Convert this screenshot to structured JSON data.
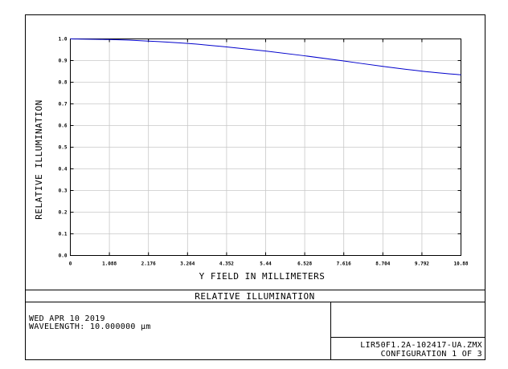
{
  "plot_title": "RELATIVE ILLUMINATION",
  "info": {
    "date": "WED APR 10 2019",
    "wavelength": "WAVELENGTH: 10.000000 µm",
    "file": "LIR50F1.2A-102417-UA.ZMX",
    "configuration": "CONFIGURATION 1 OF 3"
  },
  "colors": {
    "curve": "#0000cc",
    "grid": "#c8c8c8",
    "frame": "#000000"
  },
  "chart_data": {
    "type": "line",
    "title": "",
    "xlabel": "Y FIELD IN MILLIMETERS",
    "ylabel": "RELATIVE ILLUMINATION",
    "xlim": [
      0,
      10.88
    ],
    "ylim": [
      0,
      1.0
    ],
    "x_ticks": [
      "0",
      "1.088",
      "2.176",
      "3.264",
      "4.352",
      "5.44",
      "6.528",
      "7.616",
      "8.704",
      "9.792",
      "10.88"
    ],
    "y_ticks": [
      "0.0",
      "0.1",
      "0.2",
      "0.3",
      "0.4",
      "0.5",
      "0.6",
      "0.7",
      "0.8",
      "0.9",
      "1.0"
    ],
    "grid": true,
    "series": [
      {
        "x": [
          0,
          1.088,
          2.176,
          3.264,
          4.352,
          5.44,
          6.528,
          7.616,
          8.704,
          9.792,
          10.88
        ],
        "y": [
          1.0,
          0.997,
          0.99,
          0.979,
          0.963,
          0.944,
          0.922,
          0.898,
          0.873,
          0.851,
          0.834
        ]
      }
    ]
  }
}
